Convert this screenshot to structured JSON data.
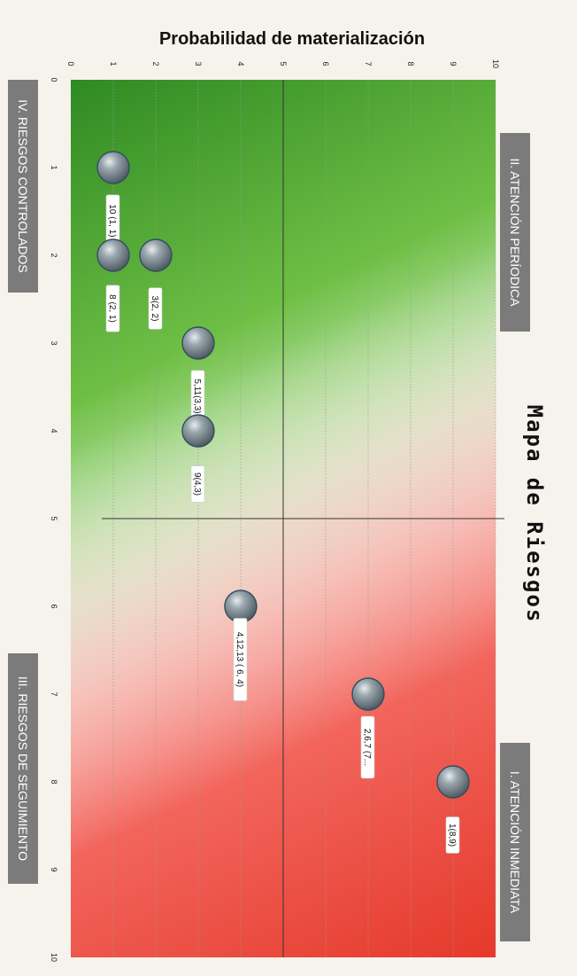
{
  "chart_data": {
    "type": "scatter",
    "title": "Mapa de Riesgos",
    "xlabel": "Probabilidad de materialización",
    "xlim": [
      0,
      10
    ],
    "ylim": [
      0,
      10
    ],
    "x_ticks": [
      "0",
      "1",
      "2",
      "3",
      "4",
      "5",
      "6",
      "7",
      "8",
      "9",
      "10"
    ],
    "y_ticks": [
      "0",
      "1",
      "2",
      "3",
      "4",
      "5",
      "6",
      "7",
      "8",
      "9",
      "10"
    ],
    "divider_x": 5,
    "divider_y": 5,
    "grid": "horizontal dotted",
    "points": [
      {
        "x": 1,
        "y": 1,
        "label": "10 (1, 1)"
      },
      {
        "x": 2,
        "y": 1,
        "label": "8 (2, 1)"
      },
      {
        "x": 2,
        "y": 2,
        "label": "3(2, 2)"
      },
      {
        "x": 3,
        "y": 3,
        "label": "5,11(3,3)"
      },
      {
        "x": 4,
        "y": 3,
        "label": "9(4,3)"
      },
      {
        "x": 6,
        "y": 4,
        "label": "4,12,13 ( 6, 4)"
      },
      {
        "x": 7,
        "y": 7,
        "label": "2,6,7 (7..."
      },
      {
        "x": 8,
        "y": 9,
        "label": "1(8,9)"
      }
    ],
    "quadrants": [
      {
        "id": "I",
        "label": "I. ATENCIÓN INMEDIATA"
      },
      {
        "id": "II",
        "label": "II. ATENCIÓN PERÍODICA"
      },
      {
        "id": "III",
        "label": "III. RIESGOS DE SEGUIMIENTO"
      },
      {
        "id": "IV",
        "label": "IV. RIESGOS CONTROLADOS"
      }
    ],
    "colors": {
      "low_risk": "#3f9a2e",
      "mid": "#ffffff",
      "high_risk": "#e63a2c",
      "marker": "#6f7a80",
      "quadrant_box": "#7b7b7b"
    }
  }
}
